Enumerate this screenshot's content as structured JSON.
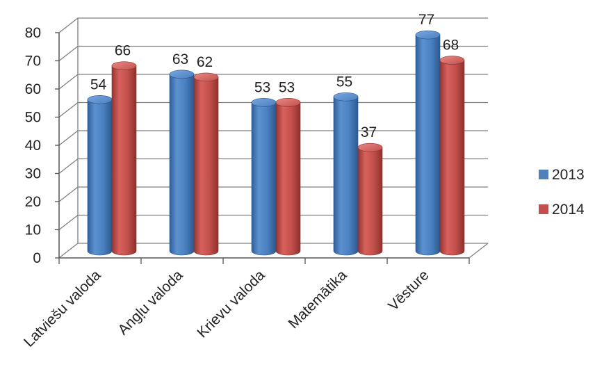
{
  "chart_data": {
    "type": "bar",
    "title": "",
    "xlabel": "",
    "ylabel": "",
    "ylim": [
      0,
      80
    ],
    "yticks": [
      "0",
      "10",
      "20",
      "30",
      "40",
      "50",
      "60",
      "70",
      "80"
    ],
    "grid": true,
    "legend_position": "right",
    "style": "3d-cylinder",
    "categories": [
      "Latviešu valoda",
      "Angļu valoda",
      "Krievu valoda",
      "Matemātika",
      "Vēsture"
    ],
    "series": [
      {
        "name": "2013",
        "color": "#4F81BD",
        "values": [
          54,
          63,
          53,
          55,
          77
        ],
        "data_labels": [
          "54",
          "63",
          "53",
          "55",
          "77"
        ]
      },
      {
        "name": "2014",
        "color": "#C0504D",
        "values": [
          66,
          62,
          53,
          37,
          68
        ],
        "data_labels": [
          "66",
          "62",
          "53",
          "37",
          "68"
        ]
      }
    ]
  }
}
